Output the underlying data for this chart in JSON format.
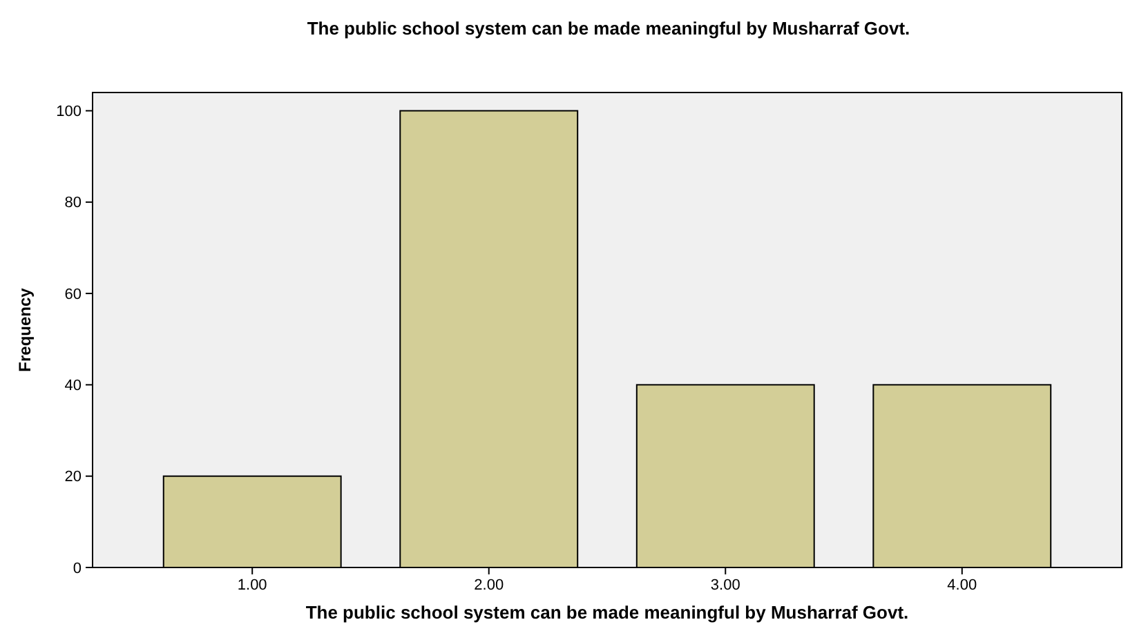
{
  "chart_data": {
    "type": "bar",
    "title": "The public school system can be made meaningful by Musharraf Govt.",
    "xlabel": "The public school system can be made meaningful by Musharraf Govt.",
    "ylabel": "Frequency",
    "categories": [
      "1.00",
      "2.00",
      "3.00",
      "4.00"
    ],
    "values": [
      20,
      100,
      40,
      40
    ],
    "color": "#d3ce97",
    "ylim": [
      0,
      104
    ],
    "yticks": [
      0,
      20,
      40,
      60,
      80,
      100
    ],
    "grid": false
  }
}
